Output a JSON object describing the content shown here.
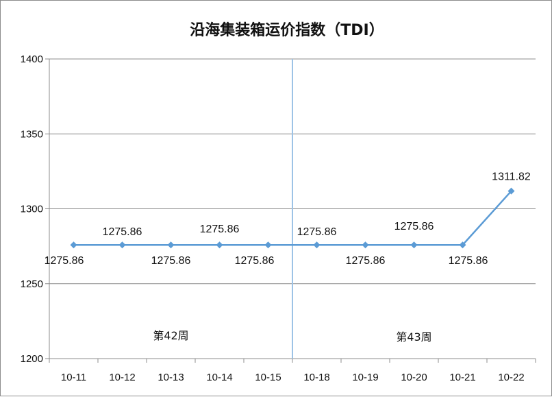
{
  "chart_data": {
    "type": "line",
    "title": "沿海集装箱运价指数（TDI）",
    "categories": [
      "10-11",
      "10-12",
      "10-13",
      "10-14",
      "10-15",
      "10-18",
      "10-19",
      "10-20",
      "10-21",
      "10-22"
    ],
    "series": [
      {
        "values": [
          1275.86,
          1275.86,
          1275.86,
          1275.86,
          1275.86,
          1275.86,
          1275.86,
          1275.86,
          1275.86,
          1311.82
        ],
        "data_labels": [
          "1275.86",
          "1275.86",
          "1275.86",
          "1275.86",
          "1275.86",
          "1275.86",
          "1275.86",
          "1275.86",
          "1275.86",
          "1311.82"
        ],
        "color": "#5B9BD5"
      }
    ],
    "ylim": [
      1200,
      1400
    ],
    "yticks": [
      "1400",
      "1350",
      "1300",
      "1250",
      "1200"
    ],
    "ytick_values": [
      1400,
      1350,
      1300,
      1250,
      1200
    ],
    "grid": "horizontal",
    "annotations": [
      {
        "text": "第42周"
      },
      {
        "text": "第43周"
      }
    ],
    "divider_color": "#9DC3E6"
  }
}
